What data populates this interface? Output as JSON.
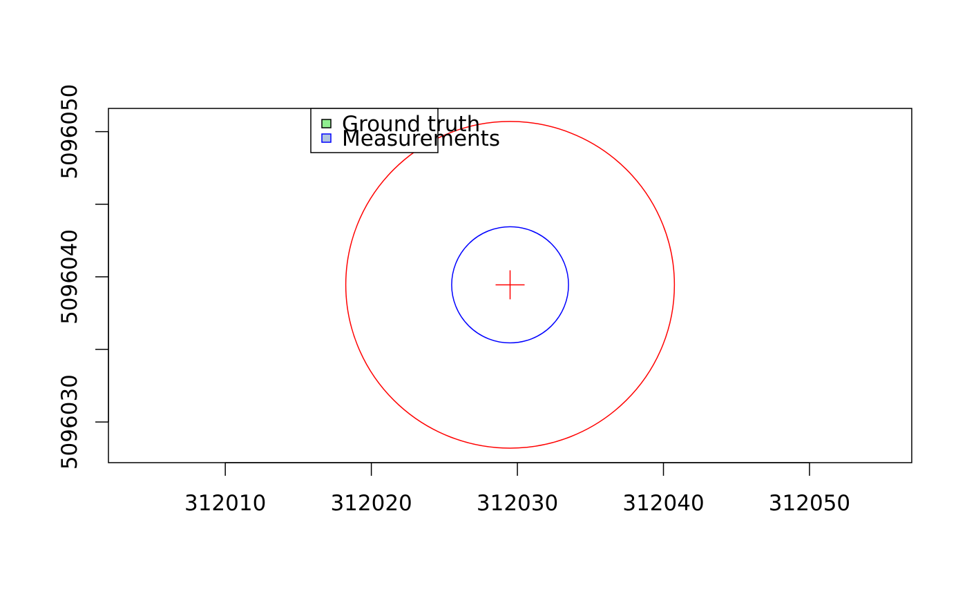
{
  "chart_data": {
    "type": "scatter",
    "title": "",
    "xlabel": "",
    "ylabel": "",
    "xlim": [
      312002,
      312057
    ],
    "ylim": [
      5096027.2,
      5096051.6
    ],
    "x_ticks": [
      312010,
      312020,
      312030,
      312040,
      312050
    ],
    "x_tick_labels": [
      "312010",
      "312020",
      "312030",
      "312040",
      "312050"
    ],
    "y_ticks": [
      5096030,
      5096035,
      5096040,
      5096045,
      5096050
    ],
    "y_tick_labels": [
      "5096030",
      "",
      "5096040",
      "",
      "5096050"
    ],
    "grid": false,
    "legend": {
      "position": "top-left",
      "entries": [
        {
          "label": "Ground truth",
          "fill": "#90ee90",
          "border": "#000000"
        },
        {
          "label": "Measurements",
          "fill": "#b0c4de",
          "border": "#0000ff"
        }
      ]
    },
    "center": {
      "x": 312029.5,
      "y": 5096039.45,
      "marker": "plus",
      "color": "#ff0000"
    },
    "circles": [
      {
        "cx": 312029.5,
        "cy": 5096039.45,
        "r": 11.25,
        "color": "#ff0000"
      },
      {
        "cx": 312029.5,
        "cy": 5096039.45,
        "r": 4.0,
        "color": "#0000ff"
      }
    ]
  }
}
